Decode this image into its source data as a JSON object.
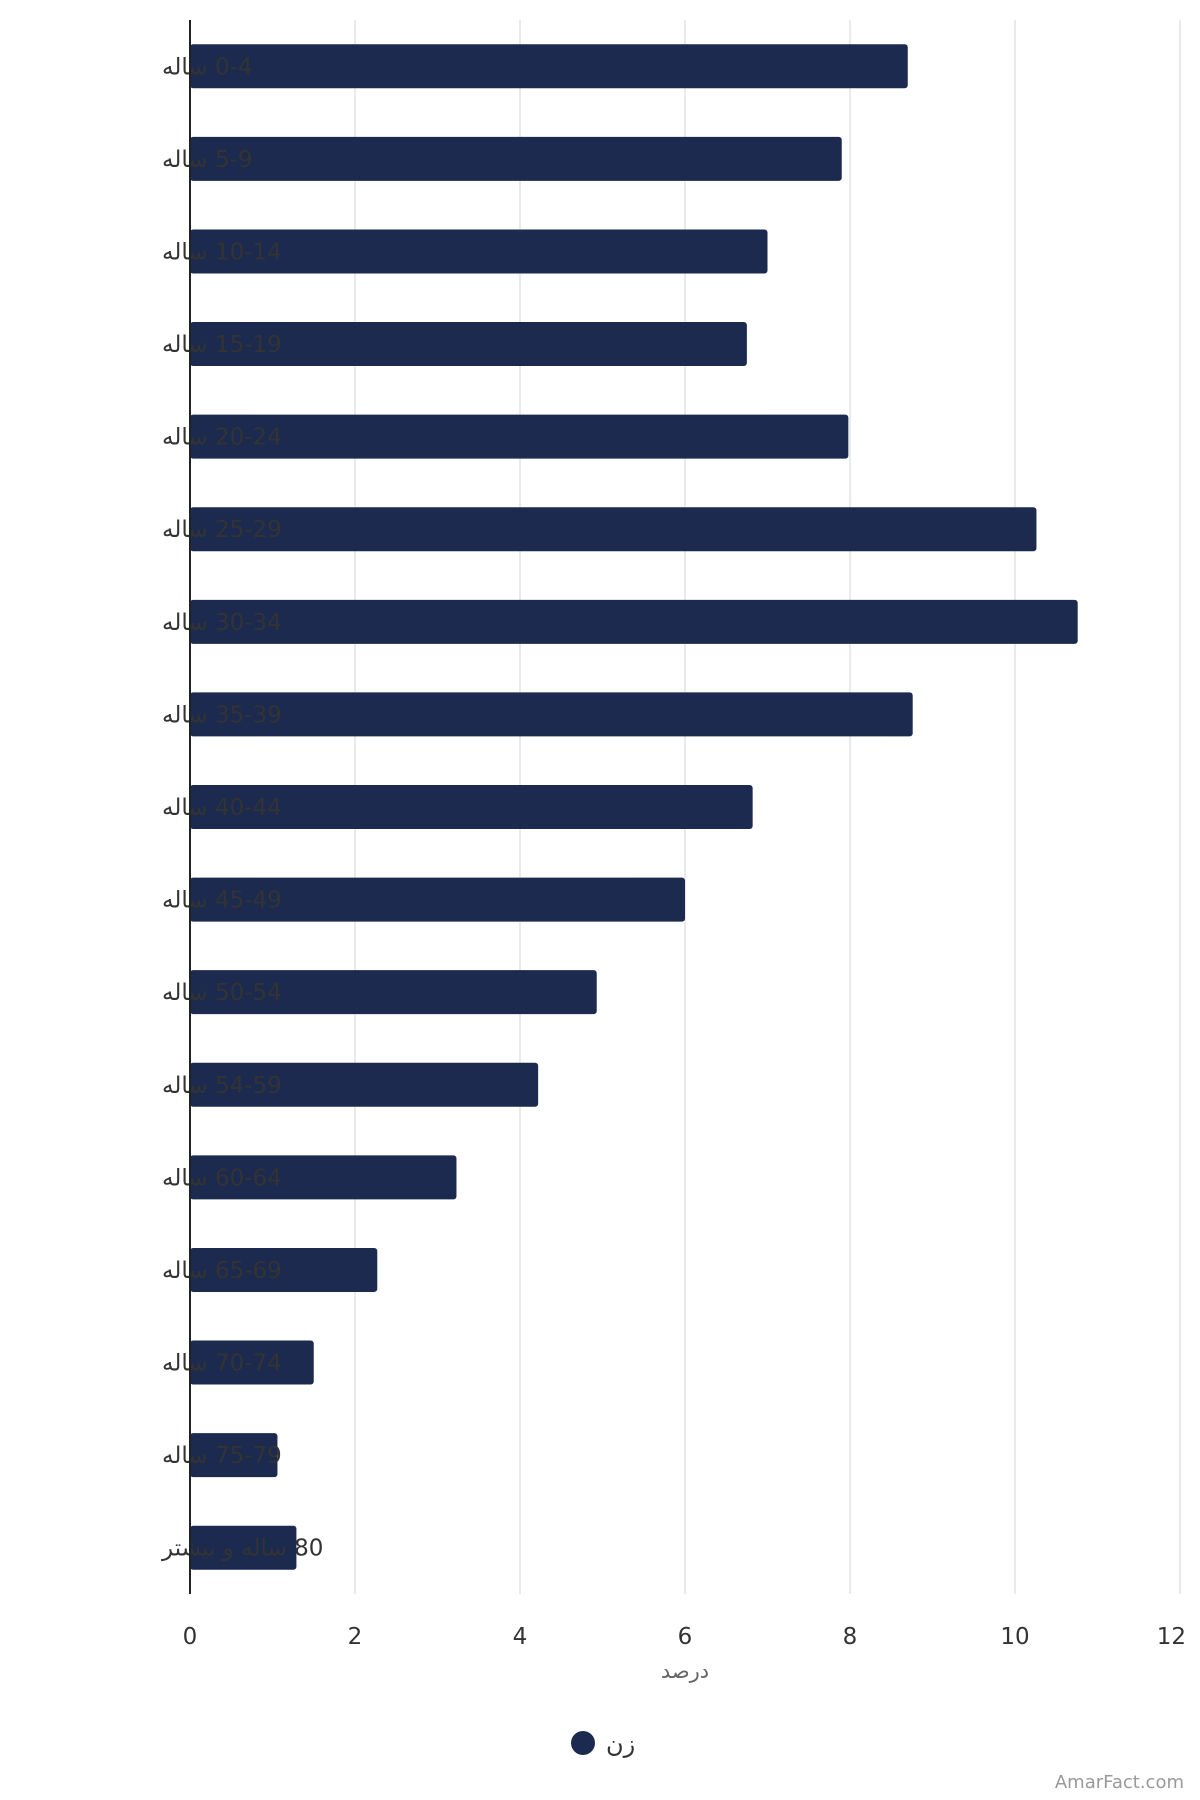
{
  "chart_data": {
    "type": "bar",
    "orientation": "horizontal",
    "categories": [
      "0-4 ساله",
      "5-9 ساله",
      "10-14 ساله",
      "15-19 ساله",
      "20-24 ساله",
      "25-29 ساله",
      "30-34 ساله",
      "35-39 ساله",
      "40-44 ساله",
      "45-49 ساله",
      "50-54 ساله",
      "54-59 ساله",
      "60-64 ساله",
      "65-69 ساله",
      "70-74 ساله",
      "75-79 ساله",
      "80 ساله و بیشتر"
    ],
    "series": [
      {
        "name": "زن",
        "color": "#1b2a4e",
        "values": [
          8.7,
          7.9,
          7.0,
          6.75,
          7.98,
          10.26,
          10.76,
          8.76,
          6.82,
          6.0,
          4.93,
          4.22,
          3.23,
          2.27,
          1.5,
          1.06,
          1.29
        ]
      }
    ],
    "xlabel": "درصد",
    "ylabel": "",
    "xlim": [
      0,
      12
    ],
    "xticks": [
      0,
      2,
      4,
      6,
      8,
      10,
      12
    ],
    "grid": true,
    "legend_position": "bottom-center"
  },
  "credit": "AmarFact.com"
}
